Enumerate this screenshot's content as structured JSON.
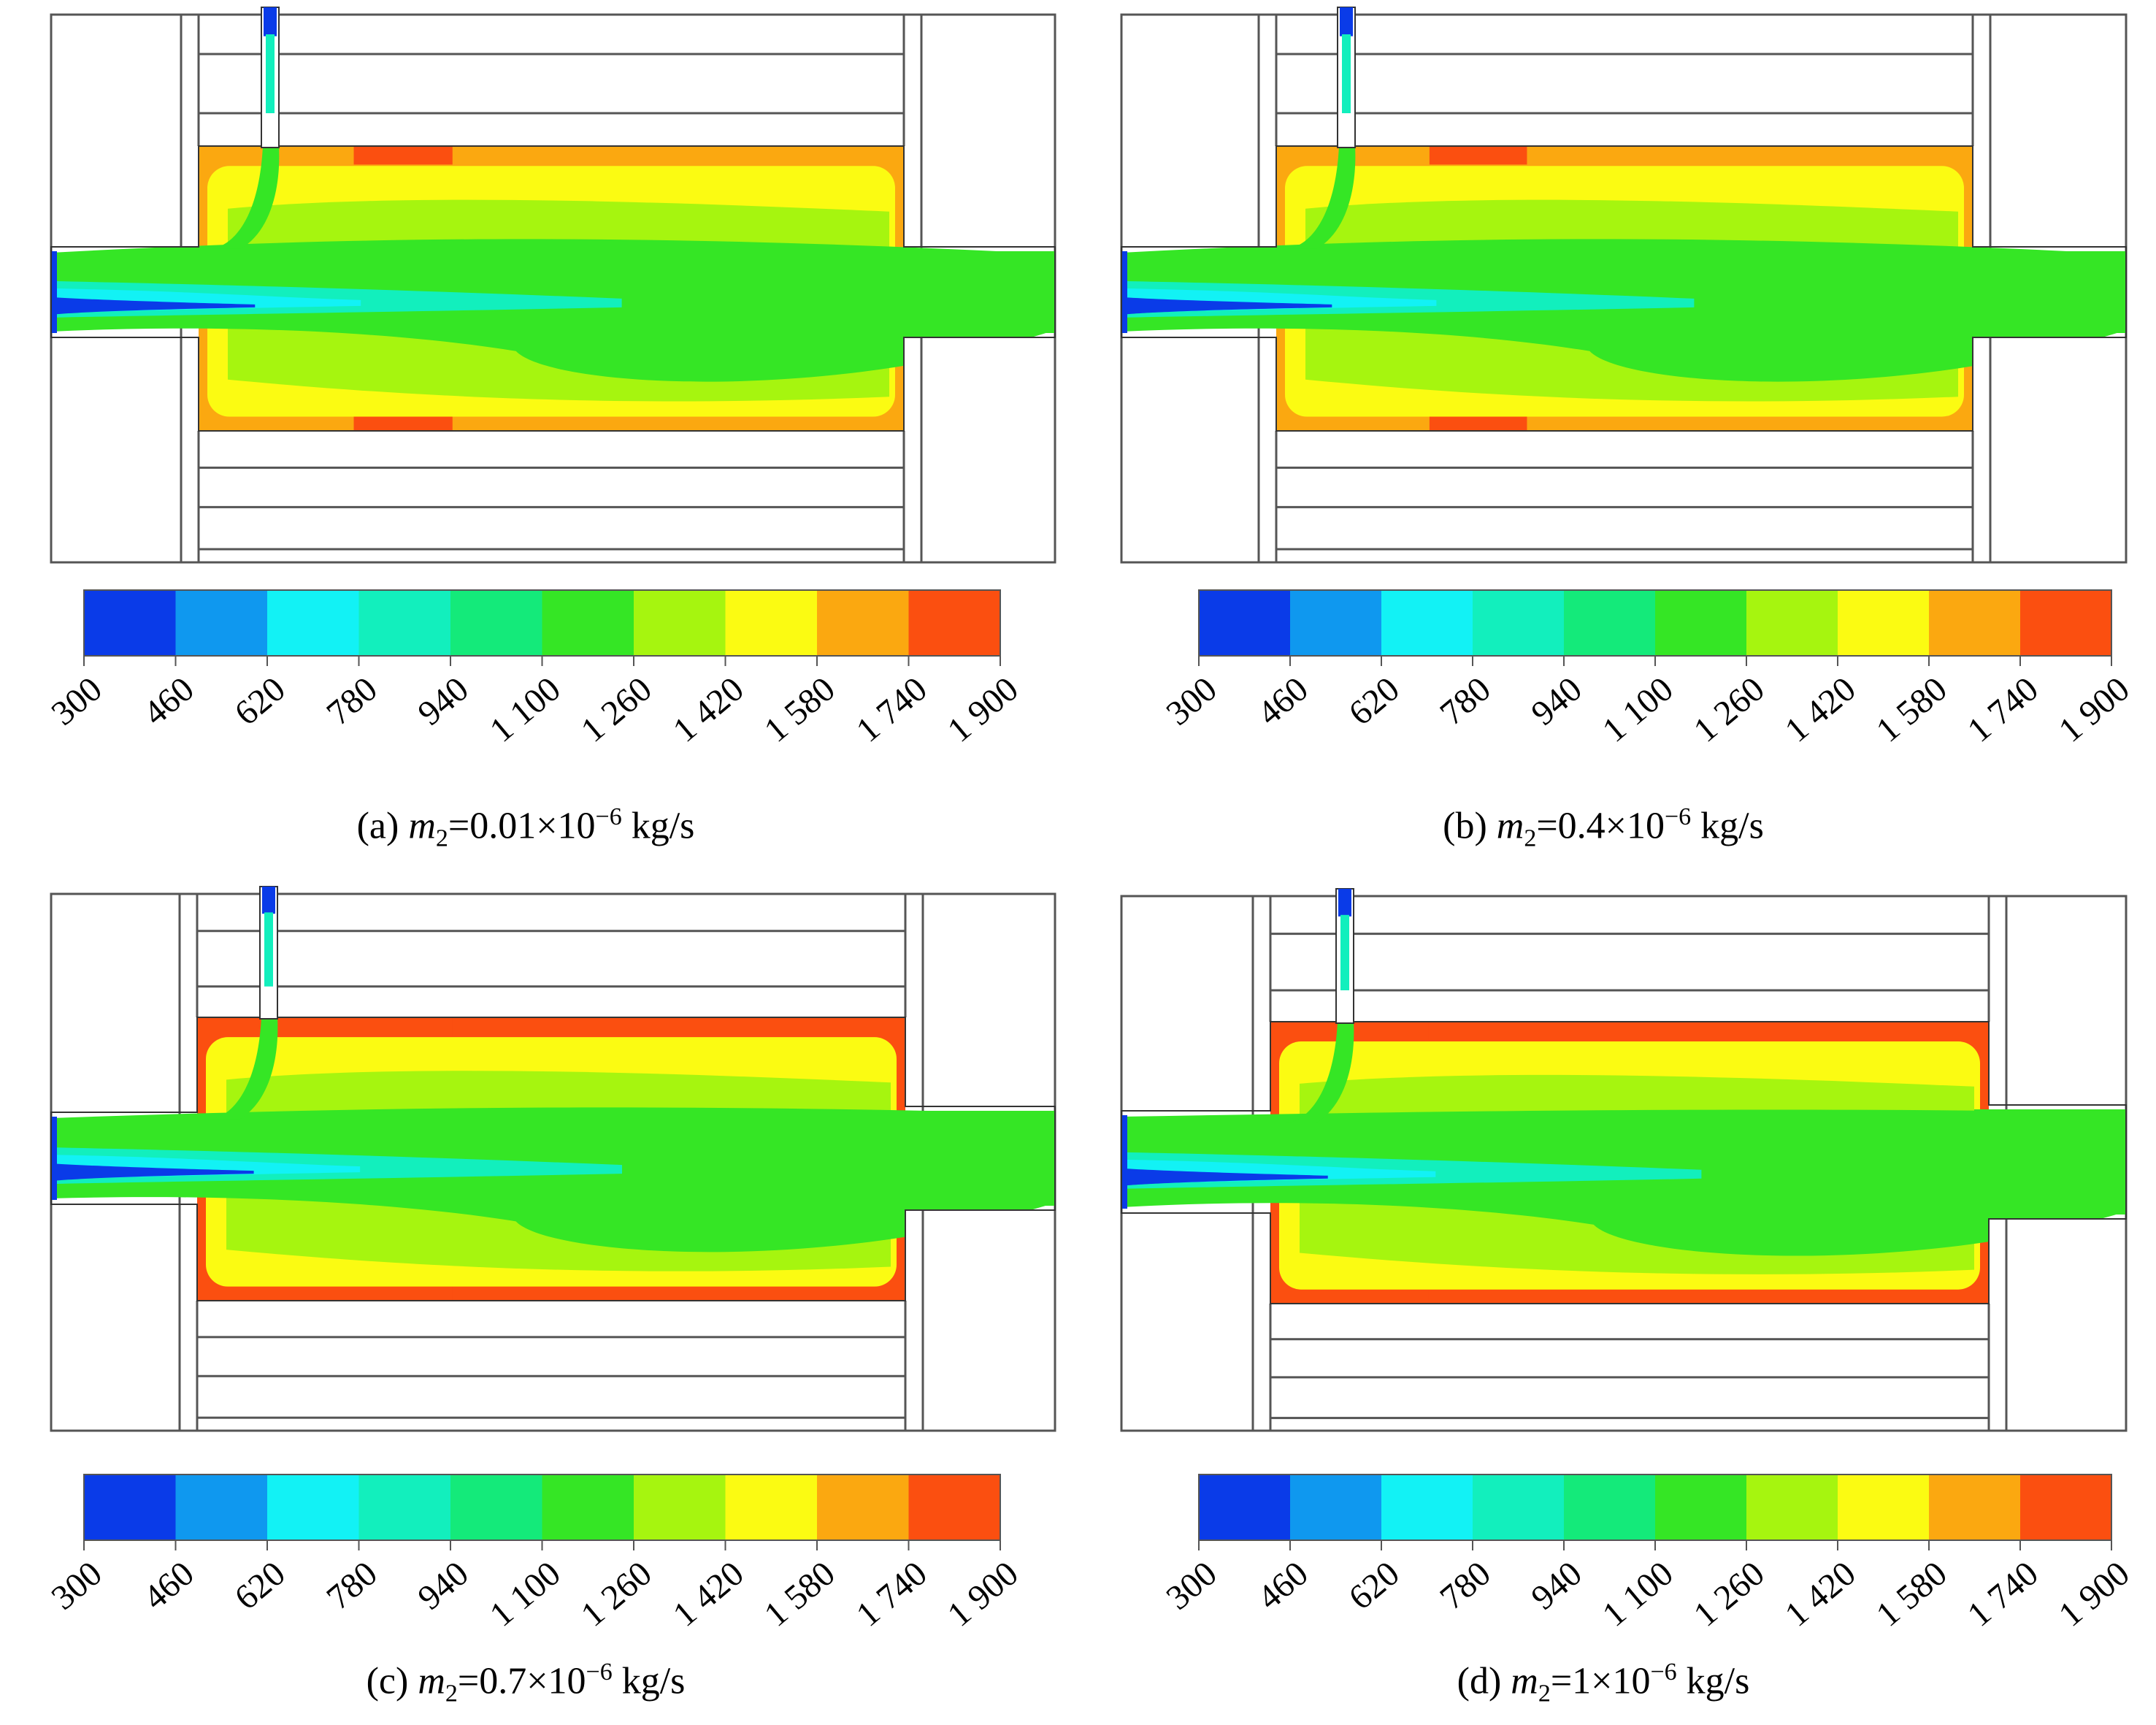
{
  "colorbar": {
    "ticks": [
      "300",
      "460",
      "620",
      "780",
      "940",
      "1 100",
      "1 260",
      "1 420",
      "1 580",
      "1 740",
      "1 900"
    ],
    "band_colors": [
      "#0a3be8",
      "#0f98ef",
      "#12f2f5",
      "#12efbd",
      "#14ea7a",
      "#35e625",
      "#a6f50f",
      "#fbfb12",
      "#fba810",
      "#fb4f10"
    ]
  },
  "panels": [
    {
      "prefix": "(a) ",
      "var": "m",
      "sub": "2",
      "eq": "=0.01×10",
      "exp": "−6",
      "unit": " kg/s"
    },
    {
      "prefix": "(b) ",
      "var": "m",
      "sub": "2",
      "eq": "=0.4×10",
      "exp": "−6",
      "unit": " kg/s"
    },
    {
      "prefix": "(c) ",
      "var": "m",
      "sub": "2",
      "eq": "=0.7×10",
      "exp": "−6",
      "unit": " kg/s"
    },
    {
      "prefix": "(d) ",
      "var": "m",
      "sub": "2",
      "eq": "=1×10",
      "exp": "−6",
      "unit": " kg/s"
    }
  ]
}
